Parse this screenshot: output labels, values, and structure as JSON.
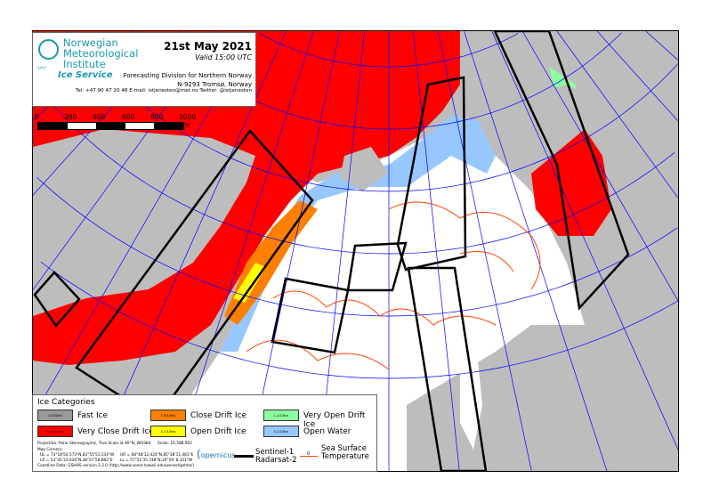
{
  "header": {
    "institute_lines": [
      "Norwegian",
      "Meteorological",
      "Institute"
    ],
    "service": "Ice Service",
    "date": "21st May 2021",
    "valid": "Valid 15:00 UTC",
    "division": "Forecasting Division for Northern Norway",
    "address": "N-9293 Tromsø, Norway",
    "contact": "Tel: +47 90 47 20 48   E-mail: istjenesten@met.no   Twitter: @istjenesten"
  },
  "scale_bar": {
    "labels": [
      "0",
      "200",
      "400",
      "600",
      "800",
      "1000 km"
    ]
  },
  "legend": {
    "title": "Ice Categories",
    "categories": [
      {
        "swatch": "10/10ths",
        "label": "Fast Ice",
        "color": "#999999"
      },
      {
        "swatch": "9-10/10ths",
        "label": "Very Close Drift Ice",
        "color": "#ff0000"
      },
      {
        "swatch": "7-9/10ths",
        "label": "Close Drift Ice",
        "color": "#ff7f00"
      },
      {
        "swatch": "4-7/10ths",
        "label": "Open Drift Ice",
        "color": "#ffff00"
      },
      {
        "swatch": "1-4/10ths",
        "label": "Very Open Drift Ice",
        "color": "#8cff9e"
      },
      {
        "swatch": "0-1/10ths",
        "label": "Open Water",
        "color": "#96c8ff"
      }
    ],
    "projection": "Projection: Polar Stereographic, True Scale at 90°N, WGS84",
    "scale": "Scale: 16,588,902",
    "corners_title": "Map Corners:",
    "ul": "UL = 73°18'50.573\"N,83°55'51.534\"W",
    "ur": "UR = 68°48'32.424\"N,85°38'11.481\"E",
    "lr": "LR = 53°45'33.028\"N,38°47'58.882\"E",
    "ll": "LL = 57°51'35.748\"N,29°59' 8.321\"W",
    "coastline": "Coastline Data: GSHHS version 2.2.0 (http://www.soest.hawaii.edu/wessel/gshhs/)",
    "copernicus": "opernicus",
    "swath_label_1": "Sentinel-1",
    "swath_label_2": "Radarsat-2",
    "sst_label_1": "Sea Surface",
    "sst_label_2": "Temperature",
    "sst_marker": "0"
  },
  "colors": {
    "land": "#bdbdbd",
    "sea": "#ffffff",
    "grid": "#0000ff",
    "swath": "#000000",
    "sst": "#ff4500",
    "brand": "#1a9aa8"
  }
}
